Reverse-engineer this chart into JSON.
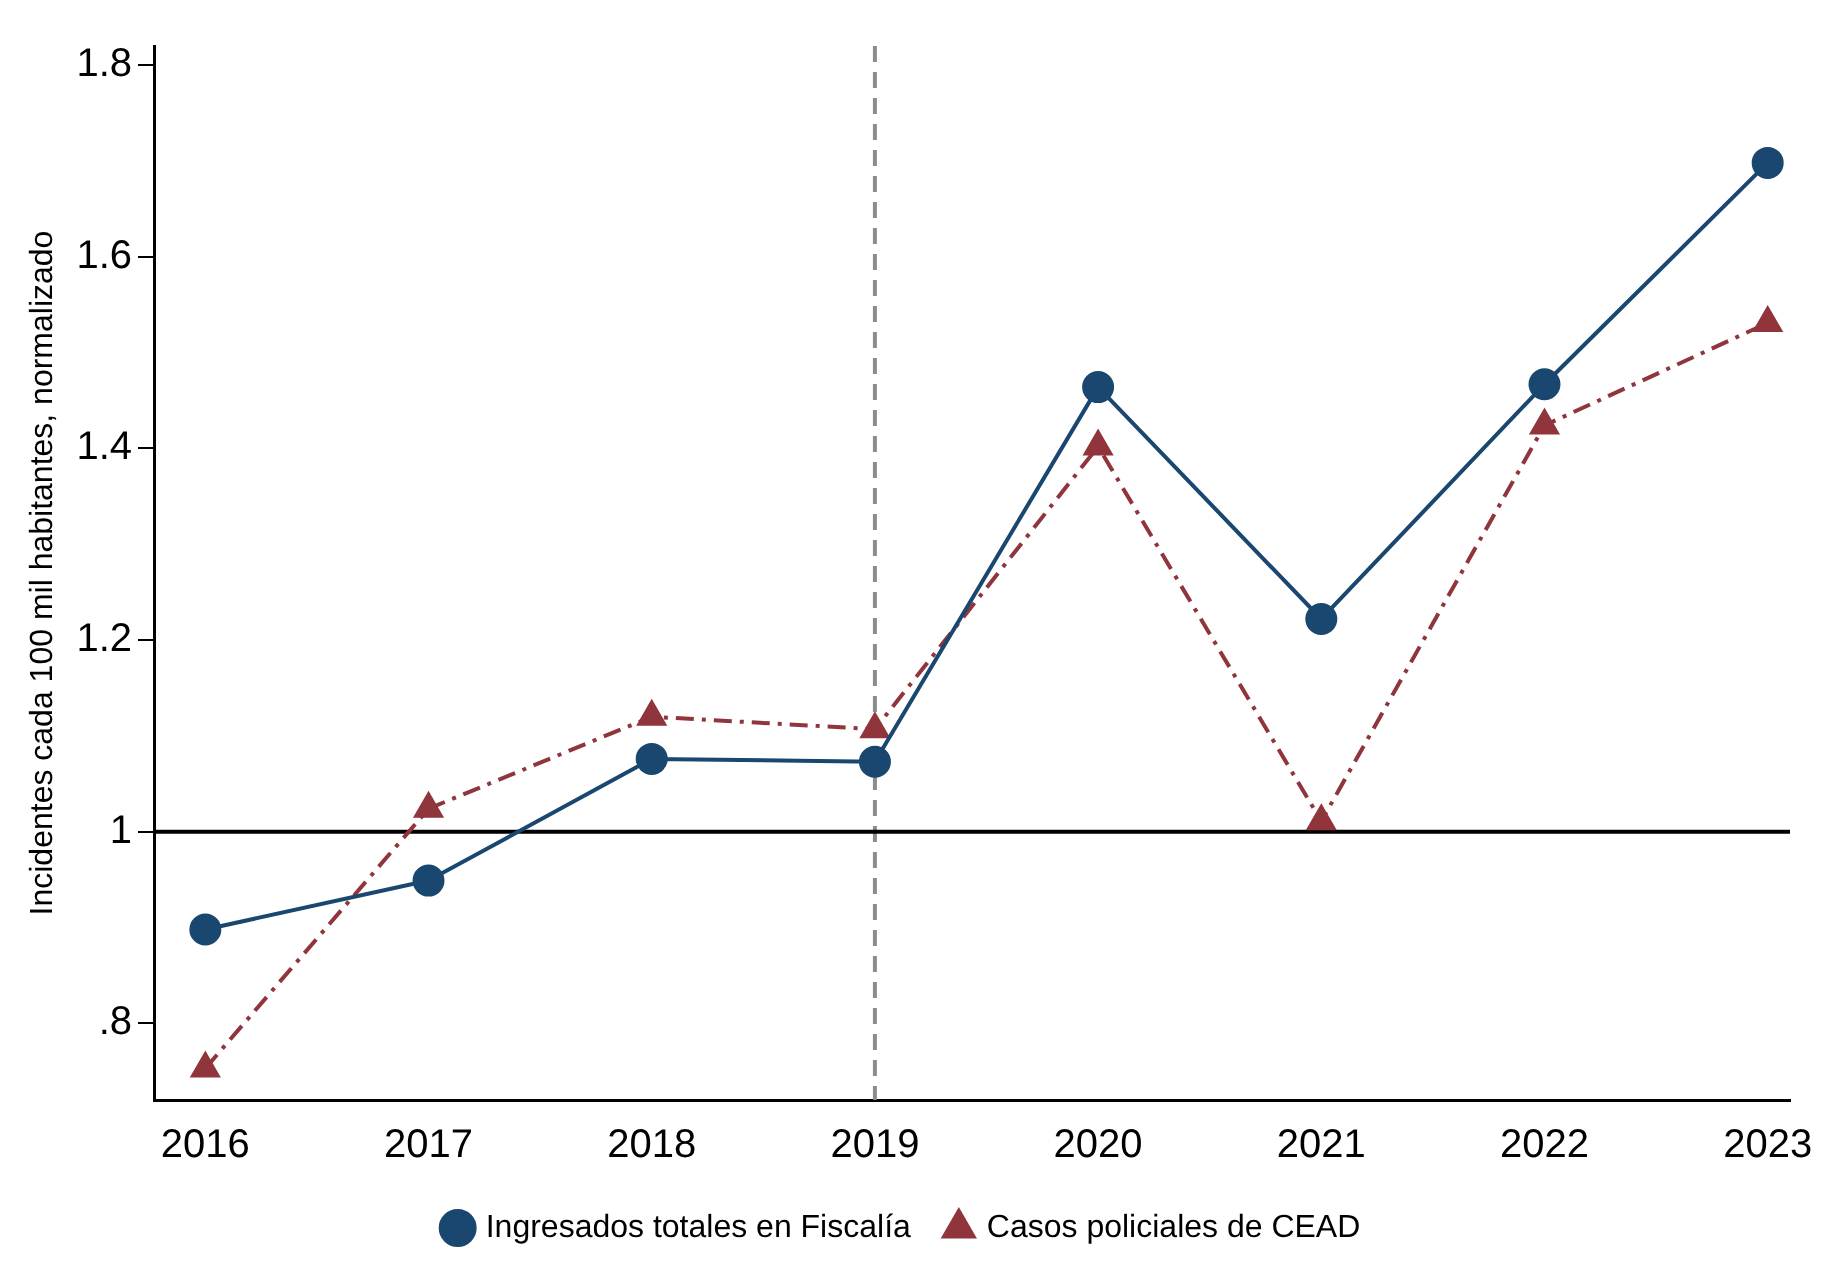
{
  "chart_data": {
    "type": "line",
    "ylabel": "Incidentes cada 100 mil habitantes, normalizado",
    "x": [
      2016,
      2017,
      2018,
      2019,
      2020,
      2021,
      2022,
      2023
    ],
    "series": [
      {
        "name": "Ingresados totales en Fiscalía",
        "color": "#1a476f",
        "marker": "circle",
        "line_style": "solid",
        "values": [
          0.898,
          0.949,
          1.076,
          1.073,
          1.464,
          1.222,
          1.467,
          1.698
        ]
      },
      {
        "name": "Casos policiales de CEAD",
        "color": "#90353b",
        "marker": "triangle",
        "line_style": "dashed",
        "values": [
          0.753,
          1.024,
          1.12,
          1.107,
          1.402,
          1.011,
          1.424,
          1.531
        ]
      }
    ],
    "xlim": [
      2015.77,
      2023.1
    ],
    "xticks": [
      2016,
      2017,
      2018,
      2019,
      2020,
      2021,
      2022,
      2023
    ],
    "ylim": [
      0.72,
      1.82
    ],
    "yticks": [
      {
        "value": 0.8,
        "label": ".8"
      },
      1,
      1.2,
      1.4,
      1.6,
      1.8
    ],
    "ref_lines": [
      {
        "axis": "x",
        "value": 2019,
        "color": "#8c8c8c",
        "line_style": "dashed"
      },
      {
        "axis": "y",
        "value": 1,
        "color": "#000000",
        "line_style": "solid"
      }
    ],
    "grid": false,
    "legend": "bottom"
  }
}
